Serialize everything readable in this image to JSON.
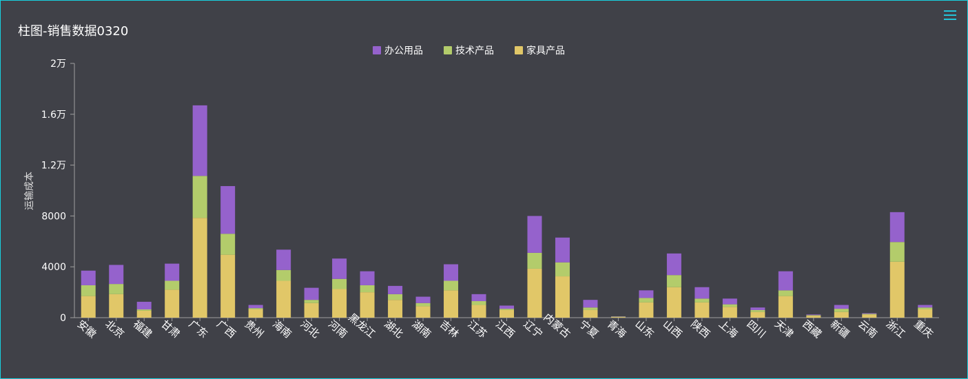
{
  "title": "柱图-销售数据0320",
  "colors": {
    "background": "#404148",
    "border": "#18d1e0",
    "axis": "#a0a0a0"
  },
  "toolbar": {
    "menu_icon": "hamburger-menu-icon"
  },
  "chart_data": {
    "type": "bar",
    "stacked": true,
    "ylabel": "运输成本",
    "xlabel": "",
    "ylim": [
      0,
      20000
    ],
    "yticks": [
      0,
      4000,
      8000,
      12000,
      16000,
      20000
    ],
    "ytick_labels": [
      "0",
      "4000",
      "8000",
      "1.2万",
      "1.6万",
      "2万"
    ],
    "legend_position": "top-center",
    "grid": false,
    "categories": [
      "安徽",
      "北京",
      "福建",
      "甘肃",
      "广东",
      "广西",
      "贵州",
      "海南",
      "河北",
      "河南",
      "黑龙江",
      "湖北",
      "湖南",
      "吉林",
      "江苏",
      "江西",
      "辽宁",
      "内蒙古",
      "宁夏",
      "青海",
      "山东",
      "山西",
      "陕西",
      "上海",
      "四川",
      "天津",
      "西藏",
      "新疆",
      "云南",
      "浙江",
      "重庆"
    ],
    "series": [
      {
        "name": "家具产品",
        "color": "#e1c768",
        "values": [
          1700,
          1850,
          550,
          2200,
          7850,
          4950,
          650,
          2900,
          1150,
          2250,
          2000,
          1400,
          900,
          2150,
          1000,
          600,
          3850,
          3250,
          600,
          50,
          1200,
          2400,
          1200,
          850,
          450,
          1700,
          150,
          450,
          250,
          4400,
          650
        ]
      },
      {
        "name": "技术产品",
        "color": "#b3cc6b",
        "values": [
          850,
          800,
          100,
          700,
          3300,
          1650,
          100,
          850,
          250,
          800,
          550,
          450,
          250,
          750,
          300,
          100,
          1250,
          1100,
          200,
          30,
          350,
          950,
          300,
          200,
          150,
          450,
          50,
          250,
          50,
          1550,
          150
        ]
      },
      {
        "name": "办公用品",
        "color": "#9562cc",
        "values": [
          1150,
          1500,
          600,
          1350,
          5550,
          3750,
          250,
          1600,
          950,
          1600,
          1100,
          650,
          500,
          1300,
          550,
          250,
          2900,
          1950,
          600,
          20,
          600,
          1700,
          900,
          450,
          200,
          1500,
          50,
          300,
          50,
          2350,
          200
        ]
      }
    ]
  }
}
